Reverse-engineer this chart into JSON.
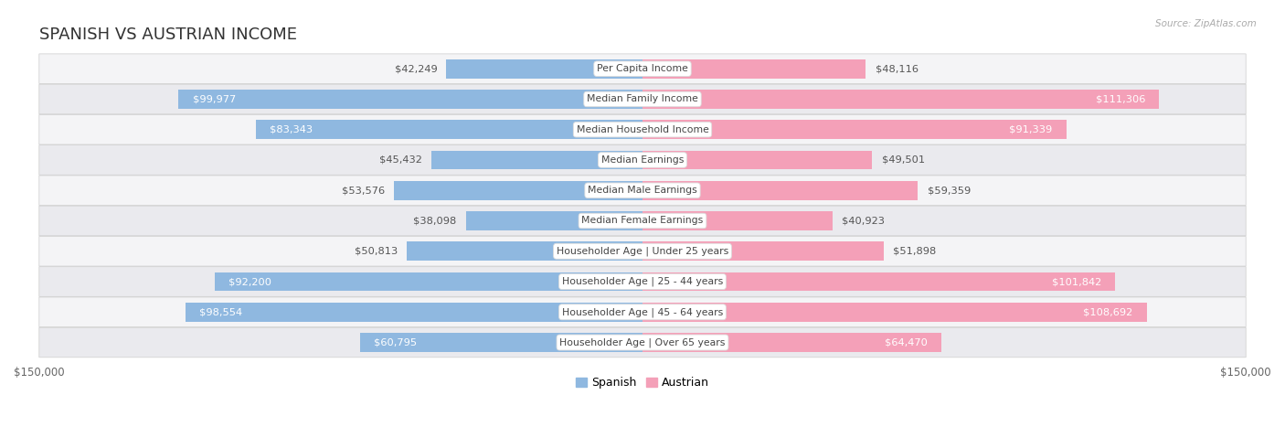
{
  "title": "SPANISH VS AUSTRIAN INCOME",
  "source": "Source: ZipAtlas.com",
  "categories": [
    "Per Capita Income",
    "Median Family Income",
    "Median Household Income",
    "Median Earnings",
    "Median Male Earnings",
    "Median Female Earnings",
    "Householder Age | Under 25 years",
    "Householder Age | 25 - 44 years",
    "Householder Age | 45 - 64 years",
    "Householder Age | Over 65 years"
  ],
  "spanish_values": [
    42249,
    99977,
    83343,
    45432,
    53576,
    38098,
    50813,
    92200,
    98554,
    60795
  ],
  "austrian_values": [
    48116,
    111306,
    91339,
    49501,
    59359,
    40923,
    51898,
    101842,
    108692,
    64470
  ],
  "spanish_labels": [
    "$42,249",
    "$99,977",
    "$83,343",
    "$45,432",
    "$53,576",
    "$38,098",
    "$50,813",
    "$92,200",
    "$98,554",
    "$60,795"
  ],
  "austrian_labels": [
    "$48,116",
    "$111,306",
    "$91,339",
    "$49,501",
    "$59,359",
    "$40,923",
    "$51,898",
    "$101,842",
    "$108,692",
    "$64,470"
  ],
  "max_val": 150000,
  "plot_max": 130000,
  "spanish_color": "#8fb8e0",
  "austrian_color": "#f4a0b8",
  "inside_threshold": 60000,
  "bar_height": 0.62,
  "row_colors": [
    "#f4f4f6",
    "#eaeaee"
  ],
  "title_fontsize": 13,
  "label_fontsize": 8.2,
  "cat_fontsize": 7.8,
  "axis_label_fontsize": 8.5,
  "legend_fontsize": 9
}
